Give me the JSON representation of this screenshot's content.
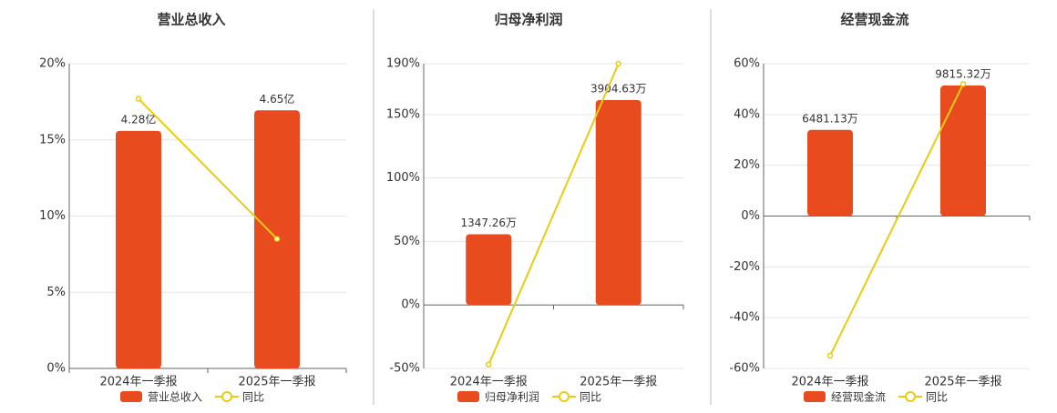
{
  "chart_data": [
    {
      "type": "bar",
      "title": "营业总收入",
      "categories": [
        "2024年一季报",
        "2025年一季报"
      ],
      "series": [
        {
          "name": "营业总收入",
          "type": "bar",
          "axis": "y2",
          "color": "#e84c1e",
          "values": [
            4.28,
            4.65
          ],
          "value_labels": [
            "4.28亿",
            "4.65亿"
          ]
        },
        {
          "name": "同比",
          "type": "line",
          "color": "#e8cc10",
          "values": [
            17.7,
            8.5
          ]
        }
      ],
      "ylim": [
        0,
        20
      ],
      "yticks": [
        {
          "value": 0,
          "label": "0%"
        },
        {
          "value": 5,
          "label": "5%"
        },
        {
          "value": 10,
          "label": "10%"
        },
        {
          "value": 15,
          "label": "15%"
        },
        {
          "value": 20,
          "label": "20%"
        }
      ],
      "y2lim": [
        0,
        5.49
      ],
      "grid": true
    },
    {
      "type": "bar",
      "title": "归母净利润",
      "categories": [
        "2024年一季报",
        "2025年一季报"
      ],
      "series": [
        {
          "name": "归母净利润",
          "type": "bar",
          "axis": "y2",
          "color": "#e84c1e",
          "values": [
            1347.26,
            3904.63
          ],
          "value_labels": [
            "1347.26万",
            "3904.63万"
          ]
        },
        {
          "name": "同比",
          "type": "line",
          "color": "#e8cc10",
          "values": [
            -47,
            190
          ]
        }
      ],
      "ylim": [
        -50,
        190
      ],
      "yticks": [
        {
          "value": -50,
          "label": "-50%"
        },
        {
          "value": 0,
          "label": "0%"
        },
        {
          "value": 50,
          "label": "50%"
        },
        {
          "value": 100,
          "label": "100%"
        },
        {
          "value": 150,
          "label": "150%"
        },
        {
          "value": 190,
          "label": "190%"
        }
      ],
      "y2lim": [
        -1210,
        4598
      ],
      "grid": true
    },
    {
      "type": "bar",
      "title": "经营现金流",
      "categories": [
        "2024年一季报",
        "2025年一季报"
      ],
      "series": [
        {
          "name": "经营现金流",
          "type": "bar",
          "axis": "y2",
          "color": "#e84c1e",
          "values": [
            6481.13,
            9815.32
          ],
          "value_labels": [
            "6481.13万",
            "9815.32万"
          ]
        },
        {
          "name": "同比",
          "type": "line",
          "color": "#e8cc10",
          "values": [
            -55,
            52
          ]
        }
      ],
      "ylim": [
        -60,
        60
      ],
      "yticks": [
        {
          "value": -60,
          "label": "-60%"
        },
        {
          "value": -40,
          "label": "-40%"
        },
        {
          "value": -20,
          "label": "-20%"
        },
        {
          "value": 0,
          "label": "0%"
        },
        {
          "value": 20,
          "label": "20%"
        },
        {
          "value": 40,
          "label": "40%"
        },
        {
          "value": 60,
          "label": "60%"
        }
      ],
      "y2lim": [
        -11460,
        11460
      ],
      "grid": true
    }
  ]
}
